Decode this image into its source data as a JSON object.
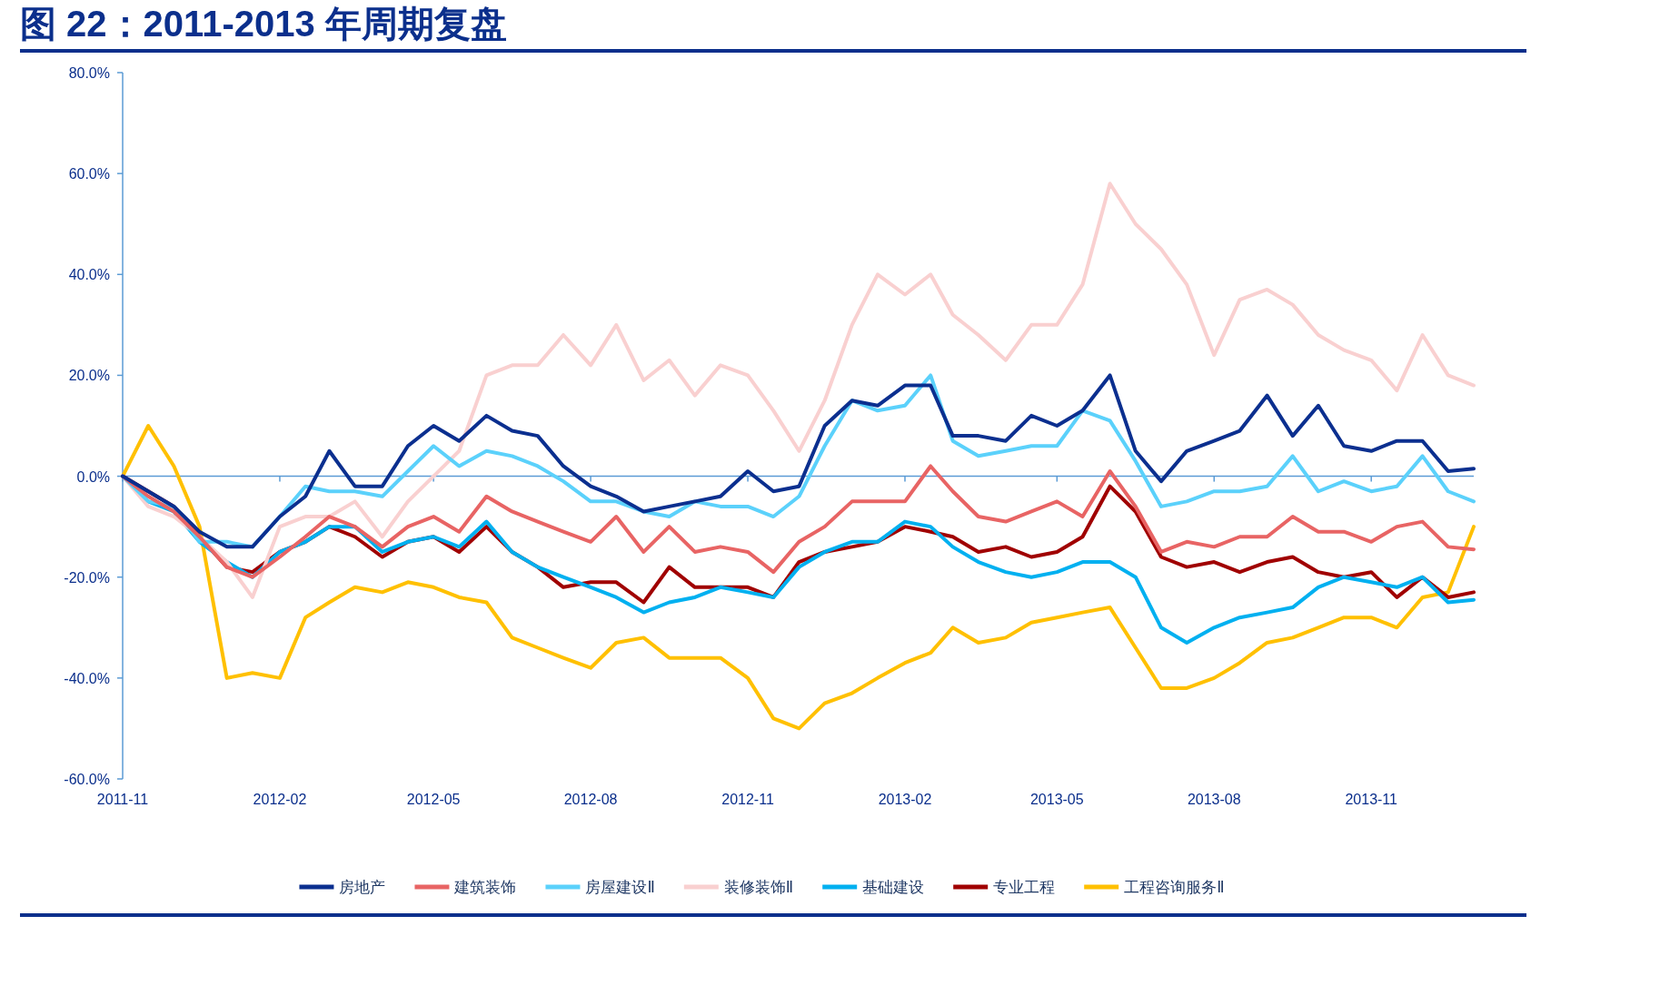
{
  "chart_data": {
    "type": "line",
    "title": "图 22：2011-2013 年周期复盘",
    "x": [
      "2011-11-01",
      "2011-11-16",
      "2011-12-01",
      "2011-12-16",
      "2012-01-01",
      "2012-01-16",
      "2012-02-01",
      "2012-02-16",
      "2012-03-01",
      "2012-03-16",
      "2012-04-01",
      "2012-04-16",
      "2012-05-01",
      "2012-05-16",
      "2012-06-01",
      "2012-06-16",
      "2012-07-01",
      "2012-07-16",
      "2012-08-01",
      "2012-08-16",
      "2012-09-01",
      "2012-09-16",
      "2012-10-01",
      "2012-10-16",
      "2012-11-01",
      "2012-11-16",
      "2012-12-01",
      "2012-12-16",
      "2013-01-01",
      "2013-01-16",
      "2013-02-01",
      "2013-02-16",
      "2013-03-01",
      "2013-03-16",
      "2013-04-01",
      "2013-04-16",
      "2013-05-01",
      "2013-05-16",
      "2013-06-01",
      "2013-06-16",
      "2013-07-01",
      "2013-07-16",
      "2013-08-01",
      "2013-08-16",
      "2013-09-01",
      "2013-09-16",
      "2013-10-01",
      "2013-10-16",
      "2013-11-01",
      "2013-11-16",
      "2013-12-01",
      "2013-12-16",
      "2013-12-31"
    ],
    "series": [
      {
        "name": "房地产",
        "color": "#0b2f8f",
        "values": [
          0,
          -3,
          -6,
          -11,
          -14,
          -14,
          -8,
          -4,
          5,
          -2,
          -2,
          6,
          10,
          7,
          12,
          9,
          8,
          2,
          -2,
          -4,
          -7,
          -6,
          -5,
          -4,
          1,
          -3,
          -2,
          10,
          15,
          14,
          18,
          18,
          8,
          8,
          7,
          12,
          10,
          13,
          20,
          5,
          -1,
          5,
          7,
          9,
          16,
          8,
          14,
          6,
          5,
          7,
          7,
          1,
          1.5
        ]
      },
      {
        "name": "建筑装饰",
        "color": "#e86464",
        "values": [
          0,
          -4,
          -7,
          -12,
          -18,
          -20,
          -16,
          -12,
          -8,
          -10,
          -14,
          -10,
          -8,
          -11,
          -4,
          -7,
          -9,
          -11,
          -13,
          -8,
          -15,
          -10,
          -15,
          -14,
          -15,
          -19,
          -13,
          -10,
          -5,
          -5,
          -5,
          2,
          -3,
          -8,
          -9,
          -7,
          -5,
          -8,
          1,
          -6,
          -15,
          -13,
          -14,
          -12,
          -12,
          -8,
          -11,
          -11,
          -13,
          -10,
          -9,
          -14,
          -14.5
        ]
      },
      {
        "name": "房屋建设Ⅱ",
        "color": "#5bd1fb",
        "values": [
          0,
          -5,
          -6,
          -13,
          -13,
          -14,
          -8,
          -2,
          -3,
          -3,
          -4,
          1,
          6,
          2,
          5,
          4,
          2,
          -1,
          -5,
          -5,
          -7,
          -8,
          -5,
          -6,
          -6,
          -8,
          -4,
          6,
          15,
          13,
          14,
          20,
          7,
          4,
          5,
          6,
          6,
          13,
          11,
          3,
          -6,
          -5,
          -3,
          -3,
          -2,
          4,
          -3,
          -1,
          -3,
          -2,
          4,
          -3,
          -5
        ]
      },
      {
        "name": "装修装饰Ⅱ",
        "color": "#f9d0d0",
        "values": [
          0,
          -6,
          -8,
          -12,
          -17,
          -24,
          -10,
          -8,
          -8,
          -5,
          -12,
          -5,
          0,
          5,
          20,
          22,
          22,
          28,
          22,
          30,
          19,
          23,
          16,
          22,
          20,
          13,
          5,
          15,
          30,
          40,
          36,
          40,
          32,
          28,
          23,
          30,
          30,
          38,
          58,
          50,
          45,
          38,
          24,
          35,
          37,
          34,
          28,
          25,
          23,
          17,
          28,
          20,
          18
        ]
      },
      {
        "name": "基础建设",
        "color": "#00b0f0",
        "values": [
          0,
          -5,
          -7,
          -13,
          -17,
          -20,
          -15,
          -13,
          -10,
          -10,
          -15,
          -13,
          -12,
          -14,
          -9,
          -15,
          -18,
          -20,
          -22,
          -24,
          -27,
          -25,
          -24,
          -22,
          -23,
          -24,
          -18,
          -15,
          -13,
          -13,
          -9,
          -10,
          -14,
          -17,
          -19,
          -20,
          -19,
          -17,
          -17,
          -20,
          -30,
          -33,
          -30,
          -28,
          -27,
          -26,
          -22,
          -20,
          -21,
          -22,
          -20,
          -25,
          -24.5
        ]
      },
      {
        "name": "专业工程",
        "color": "#a00000",
        "values": [
          0,
          -3,
          -6,
          -12,
          -18,
          -19,
          -15,
          -13,
          -10,
          -12,
          -16,
          -13,
          -12,
          -15,
          -10,
          -15,
          -18,
          -22,
          -21,
          -21,
          -25,
          -18,
          -22,
          -22,
          -22,
          -24,
          -17,
          -15,
          -14,
          -13,
          -10,
          -11,
          -12,
          -15,
          -14,
          -16,
          -15,
          -12,
          -2,
          -7,
          -16,
          -18,
          -17,
          -19,
          -17,
          -16,
          -19,
          -20,
          -19,
          -24,
          -20,
          -24,
          -23
        ]
      },
      {
        "name": "工程咨询服务Ⅱ",
        "color": "#ffc000",
        "values": [
          0,
          10,
          2,
          -10,
          -40,
          -39,
          -40,
          -28,
          -25,
          -22,
          -23,
          -21,
          -22,
          -24,
          -25,
          -32,
          -34,
          -36,
          -38,
          -33,
          -32,
          -36,
          -36,
          -36,
          -40,
          -48,
          -50,
          -45,
          -43,
          -40,
          -37,
          -35,
          -30,
          -33,
          -32,
          -29,
          -28,
          -27,
          -26,
          -34,
          -42,
          -42,
          -40,
          -37,
          -33,
          -32,
          -30,
          -28,
          -28,
          -30,
          -24,
          -23,
          -10
        ]
      }
    ],
    "xlim": [
      "2011-11-01",
      "2013-12-31"
    ],
    "xticks": [
      {
        "value": "2011-11-01",
        "label": "2011-11"
      },
      {
        "value": "2012-02-01",
        "label": "2012-02"
      },
      {
        "value": "2012-05-01",
        "label": "2012-05"
      },
      {
        "value": "2012-08-01",
        "label": "2012-08"
      },
      {
        "value": "2012-11-01",
        "label": "2012-11"
      },
      {
        "value": "2013-02-01",
        "label": "2013-02"
      },
      {
        "value": "2013-05-01",
        "label": "2013-05"
      },
      {
        "value": "2013-08-01",
        "label": "2013-08"
      },
      {
        "value": "2013-11-01",
        "label": "2013-11"
      }
    ],
    "ylim": [
      -60,
      80
    ],
    "yticks": [
      {
        "value": 80,
        "label": "80.0%"
      },
      {
        "value": 60,
        "label": "60.0%"
      },
      {
        "value": 40,
        "label": "40.0%"
      },
      {
        "value": 20,
        "label": "20.0%"
      },
      {
        "value": 0,
        "label": "0.0%"
      },
      {
        "value": -20,
        "label": "-20.0%"
      },
      {
        "value": -40,
        "label": "-40.0%"
      },
      {
        "value": -60,
        "label": "-60.0%"
      }
    ],
    "ref_lines": [
      {
        "axis": "y",
        "value": 0,
        "color": "#5b9bd5"
      }
    ],
    "legend": "bottom",
    "grid": false,
    "marker": "none",
    "line_style": "solid"
  }
}
